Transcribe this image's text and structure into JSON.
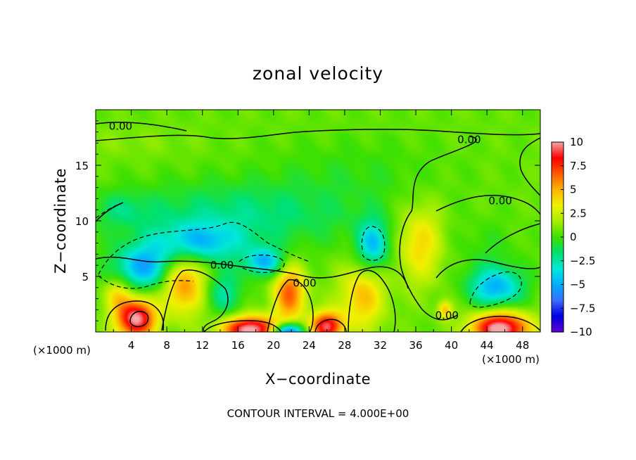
{
  "chart_data": {
    "type": "heatmap",
    "title": "zonal velocity",
    "xlabel": "X−coordinate",
    "ylabel": "Z−coordinate",
    "x_unit_left": "(×1000 m)",
    "x_unit_right": "(×1000 m)",
    "footnote": "CONTOUR INTERVAL = 4.000E+00",
    "xlim": [
      0,
      50
    ],
    "ylim": [
      0,
      20
    ],
    "x_ticks": [
      4,
      8,
      12,
      16,
      20,
      24,
      28,
      32,
      36,
      40,
      44,
      48
    ],
    "y_ticks": [
      5,
      10,
      15
    ],
    "colorbar": {
      "min": -10,
      "max": 10,
      "tick_labels": [
        "10",
        "7.5",
        "5",
        "2.5",
        "0",
        "−2.5",
        "−5",
        "−7.5",
        "−10"
      ],
      "colors": [
        "#f4a7a7",
        "#ff0000",
        "#ff5a00",
        "#ffb400",
        "#f0f000",
        "#a8ee00",
        "#3ee000",
        "#00e070",
        "#00e8d8",
        "#00b0ff",
        "#3c6cff",
        "#0000e0",
        "#6000d0"
      ]
    },
    "contour_interval": 4,
    "contour_labels": [
      {
        "text": "0.00",
        "x": 2.8,
        "z": 18.5
      },
      {
        "text": "0.00",
        "x": 42.0,
        "z": 17.3
      },
      {
        "text": "0.00",
        "x": 45.5,
        "z": 11.8
      },
      {
        "text": "0.00",
        "x": 14.2,
        "z": 6.0
      },
      {
        "text": "0.00",
        "x": 23.5,
        "z": 4.4
      },
      {
        "text": "0.00",
        "x": 39.5,
        "z": 1.5
      }
    ],
    "field_features": [
      {
        "x": 4.5,
        "z": 1.2,
        "value": 9.5,
        "rx": 2.2,
        "rz": 1.8
      },
      {
        "x": 17.5,
        "z": 0.2,
        "value": 10.0,
        "rx": 3.2,
        "rz": 1.2
      },
      {
        "x": 26.0,
        "z": 0.5,
        "value": 8.5,
        "rx": 1.8,
        "rz": 1.3
      },
      {
        "x": 45.5,
        "z": 0.3,
        "value": 10.0,
        "rx": 3.2,
        "rz": 1.5
      },
      {
        "x": 21.5,
        "z": 0.0,
        "value": -9.0,
        "rx": 1.8,
        "rz": 0.8
      },
      {
        "x": 9.8,
        "z": 4.5,
        "value": 5.5,
        "rx": 2.4,
        "rz": 2.8
      },
      {
        "x": 21.8,
        "z": 3.5,
        "value": 6.0,
        "rx": 1.8,
        "rz": 2.5
      },
      {
        "x": 30.0,
        "z": 3.2,
        "value": 4.0,
        "rx": 2.5,
        "rz": 3.0
      },
      {
        "x": 36.5,
        "z": 8.0,
        "value": 3.5,
        "rx": 2.5,
        "rz": 3.5
      },
      {
        "x": 2.5,
        "z": 3.5,
        "value": 3.0,
        "rx": 1.5,
        "rz": 1.5
      },
      {
        "x": 39.3,
        "z": 2.0,
        "value": 4.0,
        "rx": 0.8,
        "rz": 0.8
      },
      {
        "x": 5.5,
        "z": 5.8,
        "value": -5.5,
        "rx": 3.5,
        "rz": 2.0
      },
      {
        "x": 11.5,
        "z": 8.0,
        "value": -4.5,
        "rx": 5.0,
        "rz": 1.8
      },
      {
        "x": 19.0,
        "z": 6.3,
        "value": -5.0,
        "rx": 2.2,
        "rz": 1.3
      },
      {
        "x": 31.2,
        "z": 7.8,
        "value": -5.0,
        "rx": 1.8,
        "rz": 2.2
      },
      {
        "x": 45.0,
        "z": 4.0,
        "value": -5.5,
        "rx": 3.0,
        "rz": 1.8
      },
      {
        "x": 16.0,
        "z": 10.5,
        "value": -2.5,
        "rx": 14.0,
        "rz": 3.0
      },
      {
        "x": 3.0,
        "z": 11.0,
        "value": -1.5,
        "rx": 3.0,
        "rz": 1.5
      },
      {
        "x": 14.5,
        "z": 3.5,
        "value": -3.0,
        "rx": 2.0,
        "rz": 2.0
      },
      {
        "x": 29.0,
        "z": 14.5,
        "value": -0.8,
        "rx": 10.0,
        "rz": 3.0
      },
      {
        "x": 4.0,
        "z": 17.0,
        "value": 0.5,
        "rx": 7.0,
        "rz": 1.5
      },
      {
        "x": 44.0,
        "z": 7.5,
        "value": -0.8,
        "rx": 4.0,
        "rz": 2.5
      }
    ]
  }
}
